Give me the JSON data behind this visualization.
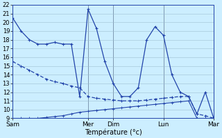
{
  "xlabel": "Température (°c)",
  "bg_color": "#cceeff",
  "grid_color": "#99bbcc",
  "line_color": "#2244aa",
  "ylim": [
    9,
    22
  ],
  "yticks": [
    9,
    10,
    11,
    12,
    13,
    14,
    15,
    16,
    17,
    18,
    19,
    20,
    21,
    22
  ],
  "day_labels": [
    "Sam",
    "Mer",
    "Dim",
    "Lun",
    "Mar"
  ],
  "day_positions": [
    0,
    9,
    12,
    18,
    24
  ],
  "n_points": 25,
  "series1_x": [
    0,
    1,
    2,
    3,
    4,
    5,
    6,
    7,
    8,
    9,
    10,
    11,
    12,
    13,
    14,
    15,
    16,
    17,
    18,
    19,
    20,
    21,
    22,
    23,
    24
  ],
  "series1_y": [
    20.5,
    19.0,
    18.0,
    17.5,
    17.5,
    17.7,
    17.5,
    17.5,
    11.5,
    21.5,
    19.3,
    15.5,
    13.0,
    11.5,
    11.5,
    12.5,
    18.0,
    19.5,
    18.5,
    14.0,
    12.0,
    11.5,
    9.5,
    12.0,
    9.0
  ],
  "series2_x": [
    0,
    1,
    2,
    3,
    4,
    5,
    6,
    7,
    8,
    9,
    10,
    11,
    12,
    13,
    14,
    15,
    16,
    17,
    18,
    19,
    20,
    21,
    22,
    23,
    24
  ],
  "series2_y": [
    15.5,
    15.0,
    14.5,
    14.0,
    13.5,
    13.2,
    13.0,
    12.7,
    12.5,
    11.5,
    11.3,
    11.2,
    11.1,
    11.0,
    11.0,
    11.0,
    11.1,
    11.2,
    11.3,
    11.4,
    11.5,
    11.5,
    9.5,
    9.3,
    9.0
  ],
  "series3_x": [
    0,
    1,
    2,
    3,
    4,
    5,
    6,
    7,
    8,
    9,
    10,
    11,
    12,
    13,
    14,
    15,
    16,
    17,
    18,
    19,
    20,
    21,
    22,
    23,
    24
  ],
  "series3_y": [
    9.0,
    9.0,
    9.0,
    9.0,
    9.1,
    9.2,
    9.3,
    9.5,
    9.7,
    9.8,
    9.9,
    10.0,
    10.1,
    10.2,
    10.3,
    10.4,
    10.5,
    10.6,
    10.7,
    10.8,
    10.9,
    11.0,
    9.0,
    9.0,
    9.0
  ],
  "xlabel_fontsize": 7,
  "tick_fontsize": 6,
  "spine_color": "#2244aa",
  "vline_color": "#556688"
}
